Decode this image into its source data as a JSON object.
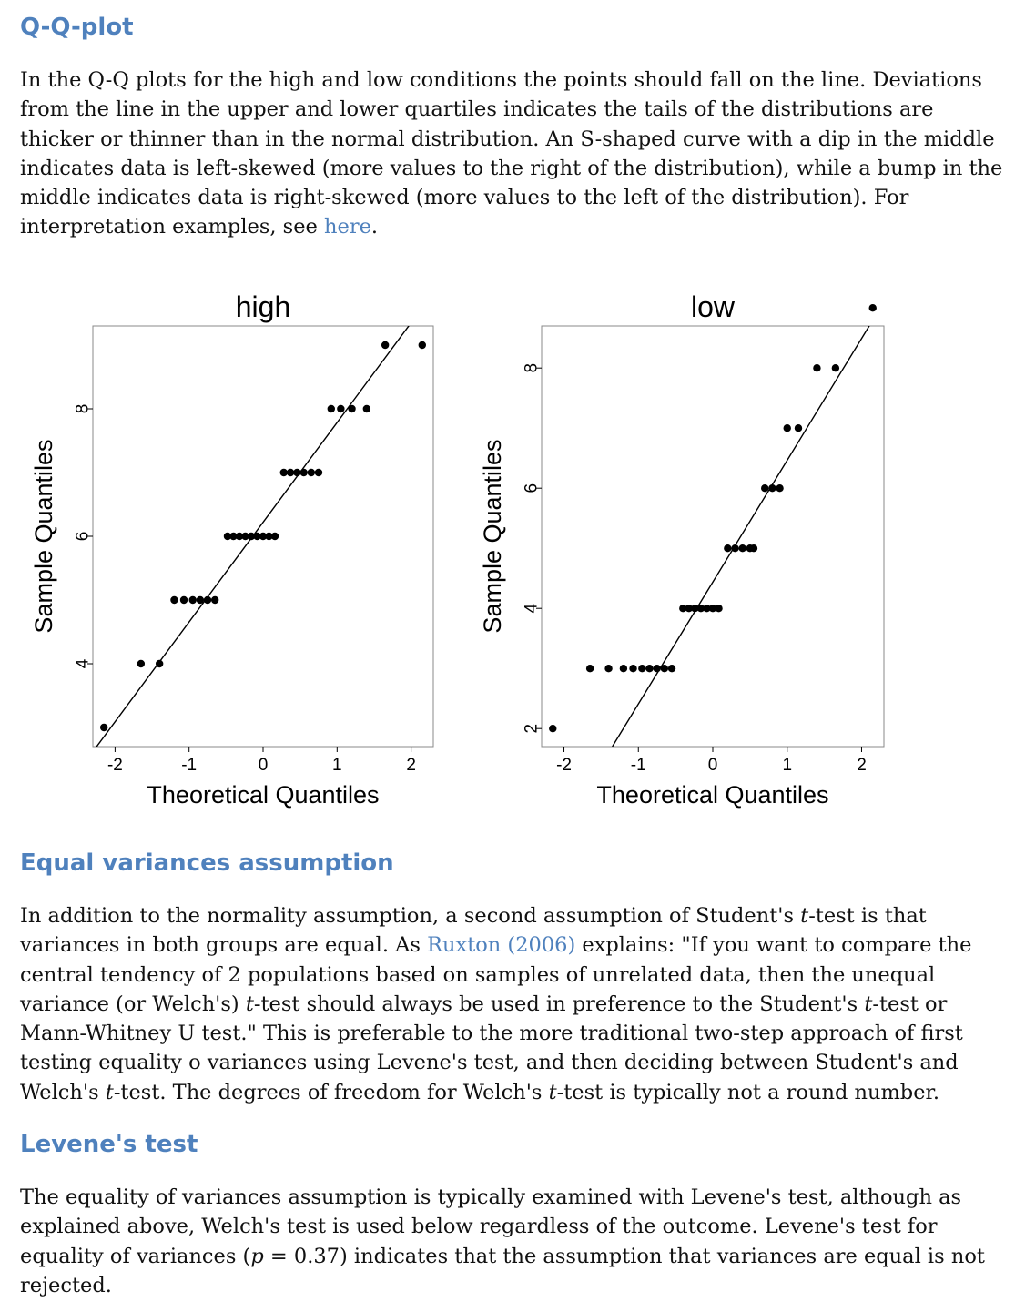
{
  "sections": {
    "qq": {
      "heading": "Q-Q-plot",
      "text_before_link": "In the Q-Q plots for the high and low conditions the points should fall on the line. Deviations from the line in the upper and lower quartiles indicates the tails of the distributions are thicker or thinner than in the normal distribution. An S-shaped curve with a dip in the middle indicates data is left-skewed (more values to the right of the distribution), while a bump in the middle indicates data is right-skewed (more values to the left of the distribution). For interpretation examples, see ",
      "link_text": "here",
      "text_after_link": "."
    },
    "equal_variances": {
      "heading": "Equal variances assumption",
      "t1": "In addition to the normality assumption, a second assumption of Student's ",
      "t_italic_1": "t",
      "t2": "-test is that variances in both groups are equal. As ",
      "link_text": "Ruxton (2006)",
      "t3": " explains: \"If you want to compare the central tendency of 2 populations based on samples of unrelated data, then the unequal variance (or Welch's) ",
      "t_italic_2": "t",
      "t4": "-test should always be used in preference to the Student's ",
      "t_italic_3": "t",
      "t5": "-test or Mann-Whitney U test.\" This is preferable to the more traditional two-step approach of first testing equality o variances using Levene's test, and then deciding between Student's and Welch's ",
      "t_italic_4": "t",
      "t6": "-test. The degrees of freedom for Welch's ",
      "t_italic_5": "t",
      "t7": "-test is typically not a round number."
    },
    "levene": {
      "heading": "Levene's test",
      "t1": "The equality of variances assumption is typically examined with Levene's test, although as explained above, Welch's test is used below regardless of the outcome. Levene's test for equality of variances (",
      "t_italic_p": "p",
      "t2": " = 0.37) indicates that the assumption that variances are equal is not rejected."
    }
  },
  "chart_data": [
    {
      "type": "scatter",
      "title": "high",
      "xlabel": "Theoretical Quantiles",
      "ylabel": "Sample Quantiles",
      "xlim": [
        -2.3,
        2.3
      ],
      "ylim": [
        2.7,
        9.3
      ],
      "xticks": [
        -2,
        -1,
        0,
        1,
        2
      ],
      "yticks": [
        4,
        6,
        8
      ],
      "x": [
        -2.15,
        -1.65,
        -1.4,
        -1.2,
        -1.07,
        -0.95,
        -0.85,
        -0.75,
        -0.65,
        -0.48,
        -0.4,
        -0.32,
        -0.24,
        -0.16,
        -0.08,
        0.0,
        0.08,
        0.16,
        0.28,
        0.37,
        0.46,
        0.55,
        0.65,
        0.75,
        0.92,
        1.05,
        1.2,
        1.4,
        1.65,
        2.15
      ],
      "y": [
        3,
        4,
        4,
        5,
        5,
        5,
        5,
        5,
        5,
        6,
        6,
        6,
        6,
        6,
        6,
        6,
        6,
        6,
        7,
        7,
        7,
        7,
        7,
        7,
        8,
        8,
        8,
        8,
        9,
        9
      ],
      "line": {
        "x": [
          -2.3,
          2.3
        ],
        "y": [
          2.62,
          9.82
        ]
      },
      "grid": false
    },
    {
      "type": "scatter",
      "title": "low",
      "xlabel": "Theoretical Quantiles",
      "ylabel": "Sample Quantiles",
      "xlim": [
        -2.3,
        2.3
      ],
      "ylim": [
        1.7,
        8.7
      ],
      "xticks": [
        -2,
        -1,
        0,
        1,
        2
      ],
      "yticks": [
        2,
        4,
        6,
        8
      ],
      "x": [
        -2.15,
        -1.65,
        -1.4,
        -1.2,
        -1.07,
        -0.95,
        -0.85,
        -0.75,
        -0.65,
        -0.55,
        -0.4,
        -0.32,
        -0.24,
        -0.16,
        -0.08,
        0.0,
        0.08,
        0.2,
        0.3,
        0.4,
        0.5,
        0.55,
        0.7,
        0.8,
        0.9,
        1.0,
        1.15,
        1.4,
        1.65,
        2.15
      ],
      "y": [
        2,
        3,
        3,
        3,
        3,
        3,
        3,
        3,
        3,
        3,
        4,
        4,
        4,
        4,
        4,
        4,
        4,
        5,
        5,
        5,
        5,
        5,
        6,
        6,
        6,
        7,
        7,
        8,
        8,
        9
      ],
      "line": {
        "x": [
          -1.35,
          2.3
        ],
        "y": [
          1.7,
          9.1
        ]
      },
      "grid": false
    }
  ]
}
